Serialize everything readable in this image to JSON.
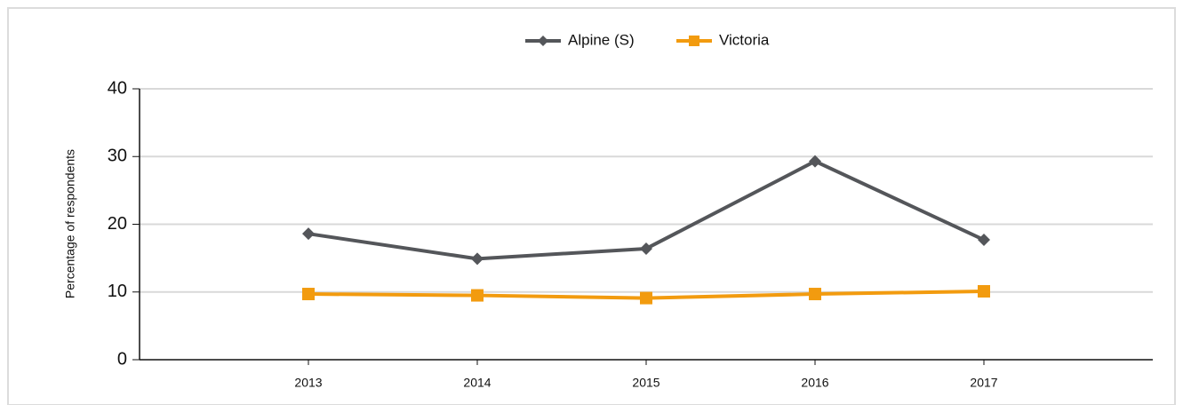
{
  "chart_data": {
    "type": "line",
    "y_label": "Percentage of respondents",
    "categories": [
      "2013",
      "2014",
      "2015",
      "2016",
      "2017"
    ],
    "series": [
      {
        "name": "Alpine (S)",
        "color": "#54565a",
        "marker": "diamond",
        "values": [
          18.6,
          14.9,
          16.4,
          29.3,
          17.7
        ]
      },
      {
        "name": "Victoria",
        "color": "#f29b0f",
        "marker": "square",
        "values": [
          9.7,
          9.5,
          9.1,
          9.7,
          10.1
        ]
      }
    ],
    "ylim": [
      0,
      40
    ],
    "yticks": [
      0,
      10,
      20,
      30,
      40
    ],
    "grid": true,
    "legend": "top"
  }
}
